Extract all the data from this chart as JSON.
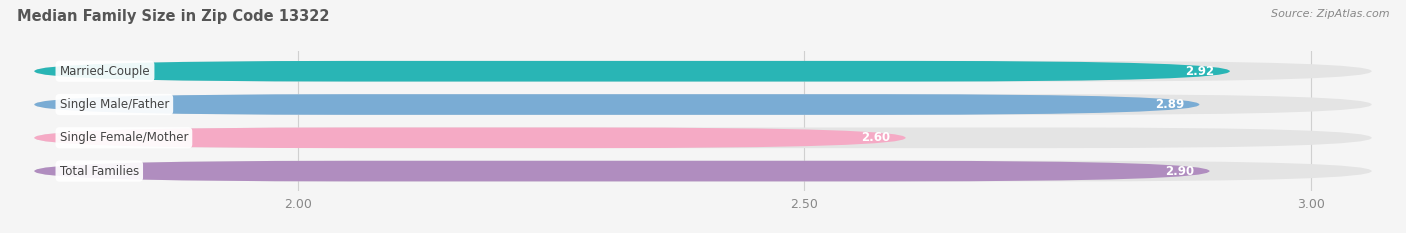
{
  "title": "Median Family Size in Zip Code 13322",
  "source": "Source: ZipAtlas.com",
  "categories": [
    "Married-Couple",
    "Single Male/Father",
    "Single Female/Mother",
    "Total Families"
  ],
  "values": [
    2.92,
    2.89,
    2.6,
    2.9
  ],
  "bar_colors": [
    "#29b5b5",
    "#7aacd4",
    "#f5aac5",
    "#b08dbf"
  ],
  "xlim_min": 1.72,
  "xlim_max": 3.08,
  "xstart": 1.74,
  "xticks": [
    2.0,
    2.5,
    3.0
  ],
  "xtick_labels": [
    "2.00",
    "2.50",
    "3.00"
  ],
  "bar_height": 0.62,
  "bar_gap": 0.38,
  "background_color": "#f5f5f5",
  "pill_bg_color": "#e4e4e4",
  "label_bg_color": "#ffffff",
  "label_text_color": "#444444",
  "value_text_color": "#ffffff",
  "grid_color": "#d0d0d0",
  "title_fontsize": 10.5,
  "source_fontsize": 8,
  "label_fontsize": 8.5,
  "value_fontsize": 8.5,
  "tick_fontsize": 9,
  "title_color": "#555555",
  "source_color": "#888888",
  "tick_color": "#888888"
}
